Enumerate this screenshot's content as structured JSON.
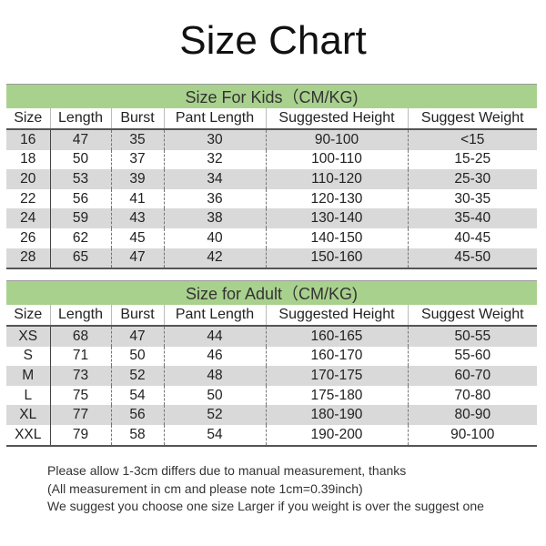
{
  "title": "Size Chart",
  "columns": [
    "Size",
    "Length",
    "Burst",
    "Pant Length",
    "Suggested Height",
    "Suggest Weight"
  ],
  "kids": {
    "heading": "Size For Kids（CM/KG)",
    "rows": [
      [
        "16",
        "47",
        "35",
        "30",
        "90-100",
        "<15"
      ],
      [
        "18",
        "50",
        "37",
        "32",
        "100-110",
        "15-25"
      ],
      [
        "20",
        "53",
        "39",
        "34",
        "110-120",
        "25-30"
      ],
      [
        "22",
        "56",
        "41",
        "36",
        "120-130",
        "30-35"
      ],
      [
        "24",
        "59",
        "43",
        "38",
        "130-140",
        "35-40"
      ],
      [
        "26",
        "62",
        "45",
        "40",
        "140-150",
        "40-45"
      ],
      [
        "28",
        "65",
        "47",
        "42",
        "150-160",
        "45-50"
      ]
    ]
  },
  "adult": {
    "heading": "Size for Adult（CM/KG)",
    "rows": [
      [
        "XS",
        "68",
        "47",
        "44",
        "160-165",
        "50-55"
      ],
      [
        "S",
        "71",
        "50",
        "46",
        "160-170",
        "55-60"
      ],
      [
        "M",
        "73",
        "52",
        "48",
        "170-175",
        "60-70"
      ],
      [
        "L",
        "75",
        "54",
        "50",
        "175-180",
        "70-80"
      ],
      [
        "XL",
        "77",
        "56",
        "52",
        "180-190",
        "80-90"
      ],
      [
        "XXL",
        "79",
        "58",
        "54",
        "190-200",
        "90-100"
      ]
    ]
  },
  "notes": [
    "Please allow 1-3cm differs due to manual measurement, thanks",
    "(All measurement in cm and please note 1cm=0.39inch)",
    "We suggest you choose one size Larger if you weight is over the suggest one"
  ],
  "colors": {
    "header_green": "#a9d18e",
    "row_gray": "#d9d9d9"
  }
}
